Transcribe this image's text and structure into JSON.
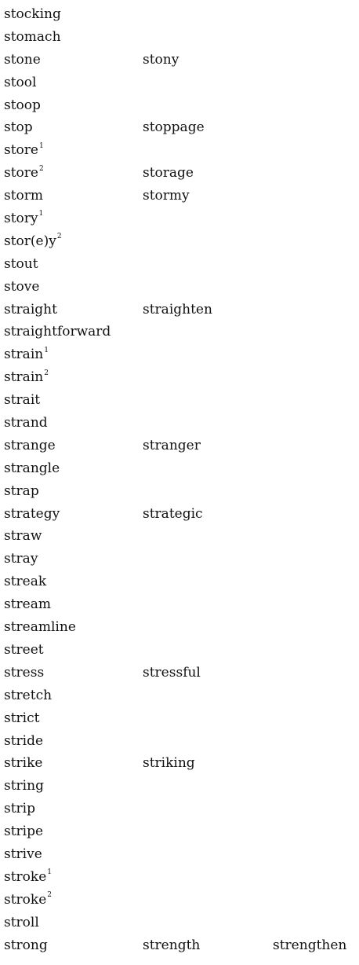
{
  "entries": [
    {
      "word": "stocking",
      "sup": "",
      "derived": []
    },
    {
      "word": "stomach",
      "sup": "",
      "derived": []
    },
    {
      "word": "stone",
      "sup": "",
      "derived": [
        "stony"
      ]
    },
    {
      "word": "stool",
      "sup": "",
      "derived": []
    },
    {
      "word": "stoop",
      "sup": "",
      "derived": []
    },
    {
      "word": "stop",
      "sup": "",
      "derived": [
        "stoppage"
      ]
    },
    {
      "word": "store",
      "sup": "1",
      "derived": []
    },
    {
      "word": "store",
      "sup": "2",
      "derived": [
        "storage"
      ]
    },
    {
      "word": "storm",
      "sup": "",
      "derived": [
        "stormy"
      ]
    },
    {
      "word": "story",
      "sup": "1",
      "derived": []
    },
    {
      "word": "stor(e)y",
      "sup": "2",
      "derived": []
    },
    {
      "word": "stout",
      "sup": "",
      "derived": []
    },
    {
      "word": "stove",
      "sup": "",
      "derived": []
    },
    {
      "word": "straight",
      "sup": "",
      "derived": [
        "straighten"
      ]
    },
    {
      "word": "straightforward",
      "sup": "",
      "derived": []
    },
    {
      "word": "strain",
      "sup": "1",
      "derived": []
    },
    {
      "word": "strain",
      "sup": "2",
      "derived": []
    },
    {
      "word": "strait",
      "sup": "",
      "derived": []
    },
    {
      "word": "strand",
      "sup": "",
      "derived": []
    },
    {
      "word": "strange",
      "sup": "",
      "derived": [
        "stranger"
      ]
    },
    {
      "word": "strangle",
      "sup": "",
      "derived": []
    },
    {
      "word": "strap",
      "sup": "",
      "derived": []
    },
    {
      "word": "strategy",
      "sup": "",
      "derived": [
        "strategic"
      ]
    },
    {
      "word": "straw",
      "sup": "",
      "derived": []
    },
    {
      "word": "stray",
      "sup": "",
      "derived": []
    },
    {
      "word": "streak",
      "sup": "",
      "derived": []
    },
    {
      "word": "stream",
      "sup": "",
      "derived": []
    },
    {
      "word": "streamline",
      "sup": "",
      "derived": []
    },
    {
      "word": "street",
      "sup": "",
      "derived": []
    },
    {
      "word": "stress",
      "sup": "",
      "derived": [
        "stressful"
      ]
    },
    {
      "word": "stretch",
      "sup": "",
      "derived": []
    },
    {
      "word": "strict",
      "sup": "",
      "derived": []
    },
    {
      "word": "stride",
      "sup": "",
      "derived": []
    },
    {
      "word": "strike",
      "sup": "",
      "derived": [
        "striking"
      ]
    },
    {
      "word": "string",
      "sup": "",
      "derived": []
    },
    {
      "word": "strip",
      "sup": "",
      "derived": []
    },
    {
      "word": "stripe",
      "sup": "",
      "derived": []
    },
    {
      "word": "strive",
      "sup": "",
      "derived": []
    },
    {
      "word": "stroke",
      "sup": "1",
      "derived": []
    },
    {
      "word": "stroke",
      "sup": "2",
      "derived": []
    },
    {
      "word": "stroll",
      "sup": "",
      "derived": []
    },
    {
      "word": "strong",
      "sup": "",
      "derived": [
        "strength",
        "strengthen"
      ]
    }
  ]
}
